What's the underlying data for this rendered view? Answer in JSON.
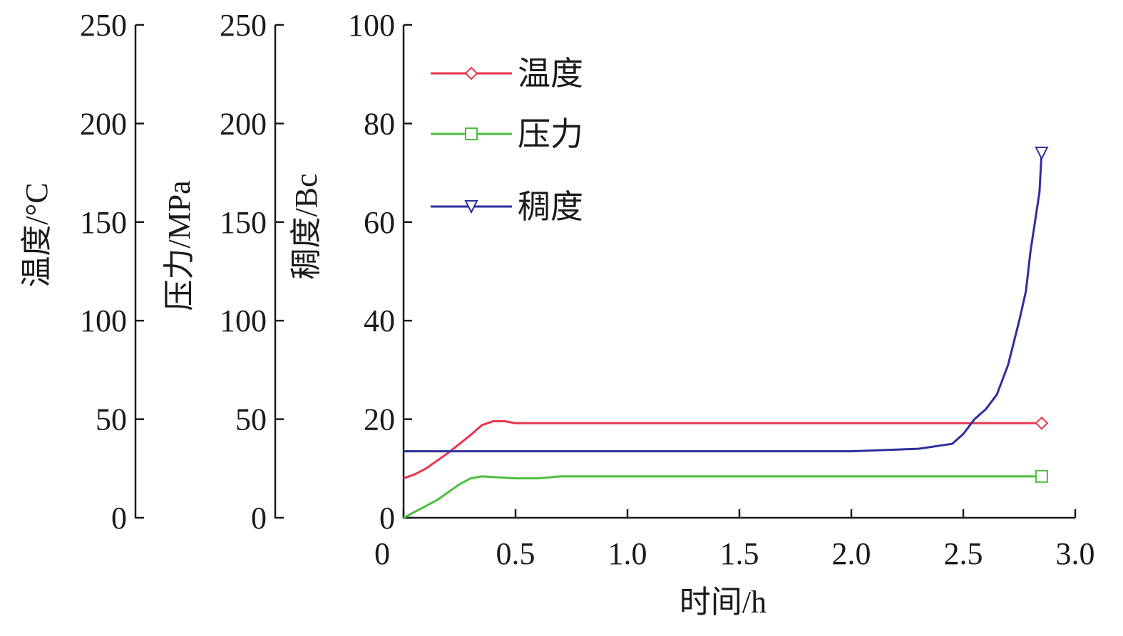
{
  "chart_data": {
    "type": "line",
    "xlabel": "时间/h",
    "x_ticks": [
      "0",
      "0.5",
      "1.0",
      "1.5",
      "2.0",
      "2.5",
      "3.0"
    ],
    "xlim": [
      0,
      3.0
    ],
    "axes": [
      {
        "id": "temp",
        "label": "温度/°C",
        "ylim": [
          0,
          250
        ],
        "ticks": [
          "0",
          "50",
          "100",
          "150",
          "200",
          "250"
        ]
      },
      {
        "id": "pressure",
        "label": "压力/MPa",
        "ylim": [
          0,
          250
        ],
        "ticks": [
          "0",
          "50",
          "100",
          "150",
          "200",
          "250"
        ]
      },
      {
        "id": "consistency",
        "label": "稠度/Bc",
        "ylim": [
          0,
          100
        ],
        "ticks": [
          "0",
          "20",
          "40",
          "60",
          "80",
          "100"
        ]
      }
    ],
    "legend_position": "top-left",
    "series": [
      {
        "name": "温度",
        "axis": "temp",
        "color": "#e8344e",
        "marker": "diamond",
        "x": [
          0,
          0.05,
          0.1,
          0.2,
          0.3,
          0.35,
          0.4,
          0.45,
          0.5,
          1.0,
          1.5,
          2.0,
          2.5,
          2.85
        ],
        "y": [
          20,
          22,
          25,
          33,
          42,
          47,
          49,
          49,
          48,
          48,
          48,
          48,
          48,
          48
        ]
      },
      {
        "name": "压力",
        "axis": "pressure",
        "color": "#4bbf3f",
        "marker": "square",
        "x": [
          0,
          0.05,
          0.1,
          0.15,
          0.2,
          0.25,
          0.3,
          0.35,
          0.5,
          0.6,
          0.7,
          1.0,
          1.5,
          1.9,
          2.0,
          2.5,
          2.85
        ],
        "y": [
          0,
          3,
          6,
          9,
          13,
          17,
          20,
          21,
          20,
          20,
          21,
          21,
          21,
          21,
          21,
          21,
          21
        ]
      },
      {
        "name": "稠度",
        "axis": "consistency",
        "color": "#2b2f9b",
        "marker": "triangle-down",
        "x": [
          0,
          0.5,
          1.0,
          1.5,
          2.0,
          2.3,
          2.45,
          2.5,
          2.55,
          2.6,
          2.65,
          2.7,
          2.75,
          2.78,
          2.8,
          2.82,
          2.84,
          2.85
        ],
        "y": [
          13.5,
          13.5,
          13.5,
          13.5,
          13.5,
          14,
          15,
          17,
          20,
          22,
          25,
          31,
          40,
          46,
          54,
          60,
          66,
          74
        ]
      }
    ]
  }
}
